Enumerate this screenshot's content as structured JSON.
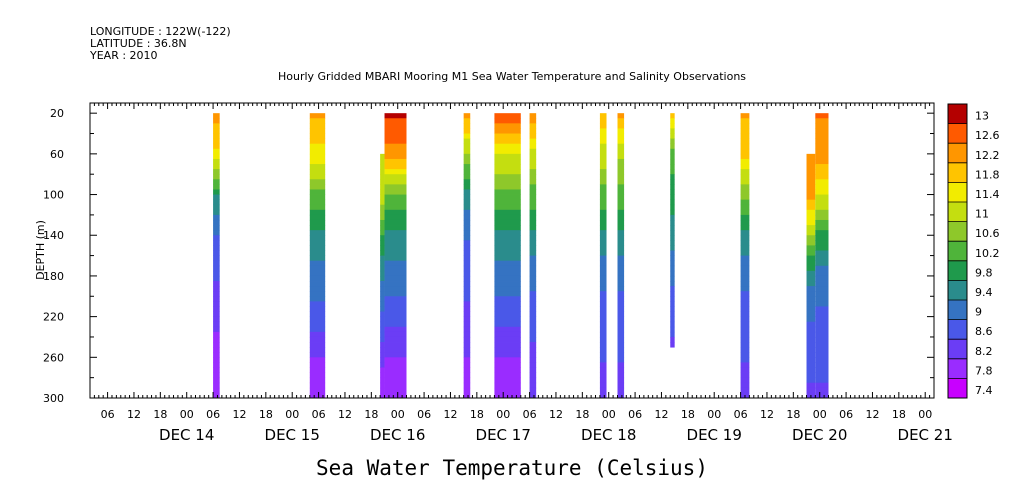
{
  "header": {
    "longitude": "LONGITUDE : 122W(-122)",
    "latitude": "LATITUDE : 36.8N",
    "year": "YEAR : 2010",
    "title": "Hourly Gridded MBARI Mooring M1 Sea Water Temperature and Salinity Observations"
  },
  "chart_data": {
    "type": "heatmap",
    "title": "Hourly Gridded MBARI Mooring M1 Sea Water Temperature and Salinity Observations",
    "xlabel": "",
    "ylabel": "DEPTH (m)",
    "colorbar_label": "Sea Water Temperature (Celsius)",
    "x_unit": "hours since DEC 13 00:00",
    "xlim": [
      2,
      194
    ],
    "ylim": [
      300,
      10
    ],
    "y_ticks": [
      20,
      60,
      100,
      140,
      180,
      220,
      260,
      300
    ],
    "x_hour_labels": [
      "06",
      "12",
      "18",
      "00",
      "06",
      "12",
      "18",
      "00",
      "06",
      "12",
      "18",
      "00",
      "06",
      "12",
      "18",
      "00",
      "06",
      "12",
      "18",
      "00",
      "06",
      "12",
      "18",
      "00",
      "06",
      "12",
      "18",
      "00",
      "06",
      "12",
      "18",
      "00"
    ],
    "day_labels": [
      "DEC 14",
      "DEC 15",
      "DEC 16",
      "DEC 17",
      "DEC 18",
      "DEC 19",
      "DEC 20",
      "DEC 21"
    ],
    "colorbar_ticks": [
      "13",
      "12.6",
      "12.2",
      "11.8",
      "11.4",
      "11",
      "10.6",
      "10.2",
      "9.8",
      "9.4",
      "9",
      "8.6",
      "8.2",
      "7.8",
      "7.4"
    ],
    "colorbar_range": [
      7.2,
      13.2
    ],
    "columns": [
      {
        "t0": 30,
        "t1": 31.5,
        "dmin": 20,
        "dmax": 300,
        "temps": [
          12.2,
          11.4,
          9.6,
          8.7,
          8.4,
          8.1,
          7.8,
          7.6
        ]
      },
      {
        "t0": 52,
        "t1": 55.5,
        "dmin": 20,
        "dmax": 300,
        "temps": [
          12.0,
          11.4,
          10.2,
          9.5,
          9.0,
          8.6,
          8.0,
          7.6
        ]
      },
      {
        "t0": 68,
        "t1": 69,
        "dmin": 60,
        "dmax": 300,
        "temps": [
          11.2,
          11.2,
          10.2,
          9.5,
          9.0,
          8.6,
          8.0,
          7.6
        ]
      },
      {
        "t0": 69,
        "t1": 74,
        "dmin": 20,
        "dmax": 300,
        "temps": [
          12.8,
          12.2,
          10.2,
          9.5,
          9.0,
          8.5,
          8.0,
          7.6
        ]
      },
      {
        "t0": 87,
        "t1": 88.5,
        "dmin": 20,
        "dmax": 300,
        "temps": [
          12.2,
          10.6,
          9.4,
          8.8,
          8.5,
          8.3,
          8.0,
          7.7
        ]
      },
      {
        "t0": 94,
        "t1": 100,
        "dmin": 20,
        "dmax": 300,
        "temps": [
          12.6,
          11.2,
          10.2,
          9.5,
          9.0,
          8.5,
          8.0,
          7.6
        ]
      },
      {
        "t0": 102,
        "t1": 103.5,
        "dmin": 20,
        "dmax": 300,
        "temps": [
          12.2,
          11.0,
          10.2,
          9.4,
          8.9,
          8.5,
          8.3,
          8.2
        ]
      },
      {
        "t0": 118,
        "t1": 119.5,
        "dmin": 20,
        "dmax": 300,
        "temps": [
          11.8,
          11.0,
          10.2,
          9.4,
          8.9,
          8.6,
          8.4,
          8.2
        ]
      },
      {
        "t0": 122,
        "t1": 123.5,
        "dmin": 20,
        "dmax": 300,
        "temps": [
          12.0,
          10.8,
          10.2,
          9.4,
          8.9,
          8.6,
          8.4,
          8.2
        ]
      },
      {
        "t0": 134,
        "t1": 135,
        "dmin": 20,
        "dmax": 250,
        "temps": [
          11.8,
          10.2,
          9.8,
          9.4,
          8.9,
          8.6,
          8.3
        ]
      },
      {
        "t0": 150,
        "t1": 152,
        "dmin": 20,
        "dmax": 300,
        "temps": [
          12.0,
          11.6,
          10.4,
          9.4,
          8.9,
          8.6,
          8.4,
          8.2
        ]
      },
      {
        "t0": 165,
        "t1": 167,
        "dmin": 60,
        "dmax": 300,
        "temps": [
          12.2,
          12.2,
          11.2,
          9.8,
          9.0,
          8.7,
          8.5,
          8.3
        ]
      },
      {
        "t0": 167,
        "t1": 170,
        "dmin": 20,
        "dmax": 300,
        "temps": [
          12.4,
          12.2,
          11.2,
          9.8,
          9.0,
          8.7,
          8.5,
          8.3
        ]
      }
    ]
  }
}
